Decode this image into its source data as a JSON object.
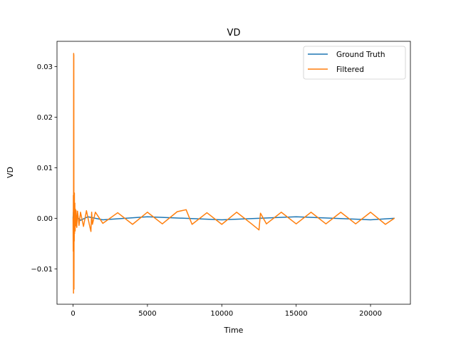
{
  "chart_data": {
    "type": "line",
    "title": "VD",
    "xlabel": "Time",
    "ylabel": "VD",
    "xlim": [
      -1080,
      22680
    ],
    "ylim": [
      -0.017,
      0.035
    ],
    "xticks": [
      0,
      5000,
      10000,
      15000,
      20000
    ],
    "xtick_labels": [
      "0",
      "5000",
      "10000",
      "15000",
      "20000"
    ],
    "yticks": [
      -0.01,
      0.0,
      0.01,
      0.02,
      0.03
    ],
    "ytick_labels": [
      "−0.01",
      "0.00",
      "0.01",
      "0.02",
      "0.03"
    ],
    "grid": false,
    "legend_position": "top-right",
    "series": [
      {
        "name": "Ground Truth",
        "color": "#1f77b4",
        "x": [
          0,
          20,
          40,
          60,
          80,
          100,
          200,
          500,
          1000,
          2000,
          5000,
          10000,
          15000,
          20000,
          21600
        ],
        "y": [
          0.0,
          0.0012,
          -0.0012,
          0.0009,
          -0.0008,
          0.0005,
          0.0004,
          -0.0004,
          0.0003,
          -0.0003,
          0.0003,
          -0.0003,
          0.0003,
          -0.0003,
          0.0
        ]
      },
      {
        "name": "Filtered",
        "color": "#ff7f0e",
        "x": [
          0,
          10,
          20,
          30,
          40,
          50,
          60,
          70,
          80,
          90,
          100,
          120,
          140,
          160,
          180,
          200,
          250,
          300,
          400,
          500,
          700,
          900,
          1100,
          1200,
          1250,
          1300,
          1500,
          2000,
          3000,
          4000,
          5000,
          6000,
          7000,
          7600,
          8000,
          9000,
          10000,
          11000,
          12000,
          12500,
          12600,
          13000,
          14000,
          15000,
          16000,
          17000,
          18000,
          19000,
          20000,
          21000,
          21600
        ],
        "y": [
          0.0,
          -0.0065,
          0.0045,
          -0.0148,
          0.0326,
          0.0322,
          -0.014,
          0.004,
          -0.0045,
          0.005,
          -0.003,
          0.003,
          -0.0025,
          0.0018,
          -0.0015,
          0.0015,
          -0.0018,
          0.0014,
          -0.0014,
          0.0012,
          -0.0016,
          0.0015,
          -0.0013,
          -0.0026,
          0.0012,
          -0.0012,
          0.0012,
          -0.001,
          0.0011,
          -0.0012,
          0.0012,
          -0.0011,
          0.0013,
          0.0017,
          -0.0012,
          0.0011,
          -0.0012,
          0.0012,
          -0.0011,
          -0.0023,
          0.001,
          -0.0011,
          0.0012,
          -0.0011,
          0.0012,
          -0.0011,
          0.0012,
          -0.0011,
          0.0012,
          -0.0012,
          0.0
        ]
      }
    ]
  }
}
